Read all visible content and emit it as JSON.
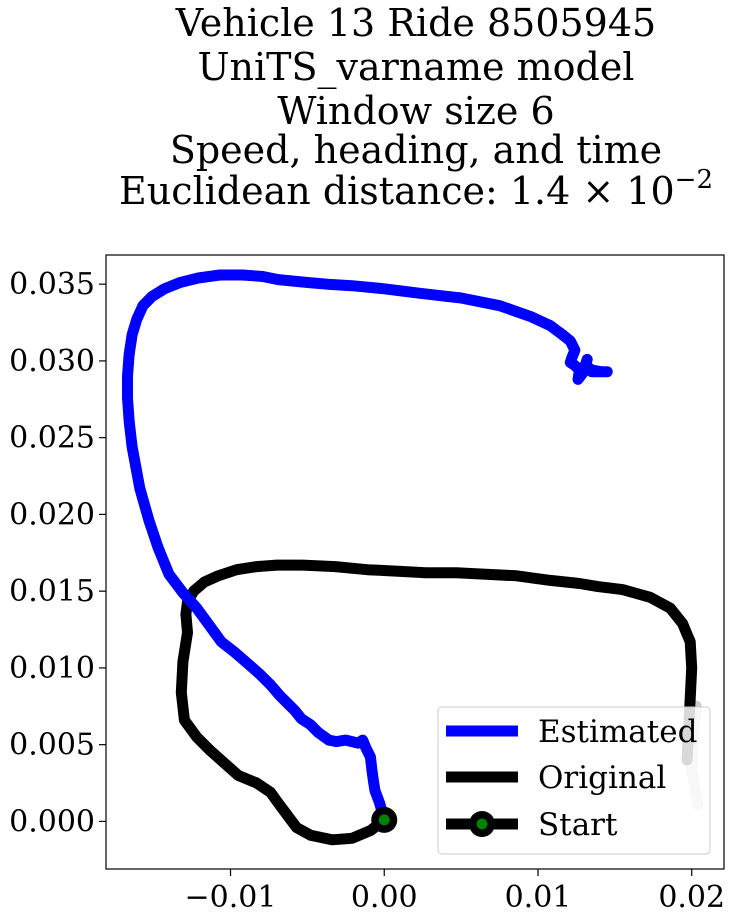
{
  "chart_data": {
    "type": "line",
    "title_lines": [
      "Vehicle 13 Ride 8505945",
      "UniTS_varname model",
      "Window size 6",
      "Speed, heading, and time"
    ],
    "title_metric_label": "Euclidean distance: ",
    "title_metric_mantissa": "1.4",
    "title_metric_times": "×",
    "title_metric_base": "10",
    "title_metric_exponent": "−2",
    "xlabel": "",
    "ylabel": "",
    "xlim": [
      -0.0181,
      0.0221
    ],
    "ylim": [
      -0.0031,
      0.0369
    ],
    "xticks": [
      -0.01,
      0.0,
      0.01,
      0.02
    ],
    "xtick_labels": [
      "−0.01",
      "0.00",
      "0.01",
      "0.02"
    ],
    "yticks": [
      0.0,
      0.005,
      0.01,
      0.015,
      0.02,
      0.025,
      0.03,
      0.035
    ],
    "ytick_labels": [
      "0.000",
      "0.005",
      "0.010",
      "0.015",
      "0.020",
      "0.025",
      "0.030",
      "0.035"
    ],
    "grid": false,
    "legend_position": "lower-right",
    "series": [
      {
        "name": "Estimated",
        "color": "#0000ff",
        "x": [
          0.0,
          -0.0003,
          -0.0006,
          -0.0007,
          -0.0008,
          -0.0009,
          -0.0012,
          -0.0014,
          -0.0017,
          -0.0021,
          -0.0025,
          -0.0031,
          -0.0036,
          -0.0043,
          -0.0048,
          -0.0054,
          -0.0058,
          -0.0063,
          -0.0068,
          -0.0074,
          -0.0081,
          -0.0089,
          -0.0097,
          -0.0106,
          -0.0114,
          -0.0122,
          -0.0131,
          -0.014,
          -0.0147,
          -0.0153,
          -0.0159,
          -0.0164,
          -0.0166,
          -0.0167,
          -0.0167,
          -0.0166,
          -0.0164,
          -0.0161,
          -0.0157,
          -0.0151,
          -0.0143,
          -0.0133,
          -0.0121,
          -0.0107,
          -0.0092,
          -0.0079,
          -0.0069,
          -0.0059,
          -0.0049,
          -0.0037,
          -0.0021,
          0.0,
          0.0024,
          0.005,
          0.0075,
          0.0095,
          0.0108,
          0.0116,
          0.0121,
          0.0124,
          0.0122,
          0.0121,
          0.0124,
          0.0127,
          0.0126,
          0.0129,
          0.0132,
          0.0131,
          0.0135,
          0.0141,
          0.0145,
          0.0135
        ],
        "y": [
          0.0001,
          0.0012,
          0.002,
          0.0026,
          0.0033,
          0.0042,
          0.0048,
          0.0053,
          0.0051,
          0.0052,
          0.0053,
          0.0052,
          0.0053,
          0.0058,
          0.0063,
          0.0067,
          0.0072,
          0.0077,
          0.0082,
          0.0089,
          0.0096,
          0.0103,
          0.011,
          0.0117,
          0.0128,
          0.0139,
          0.0149,
          0.0161,
          0.0178,
          0.0196,
          0.0217,
          0.0244,
          0.0261,
          0.0276,
          0.029,
          0.0304,
          0.0317,
          0.0327,
          0.0336,
          0.0342,
          0.0347,
          0.0351,
          0.0354,
          0.0356,
          0.0356,
          0.0355,
          0.0353,
          0.0352,
          0.0351,
          0.035,
          0.0349,
          0.0347,
          0.0344,
          0.0341,
          0.0336,
          0.0329,
          0.0323,
          0.0317,
          0.0313,
          0.0307,
          0.0302,
          0.0299,
          0.0297,
          0.0294,
          0.0288,
          0.0292,
          0.0301,
          0.0297,
          0.0294,
          0.0293,
          0.0293,
          0.0293
        ]
      },
      {
        "name": "Original",
        "color": "#000000",
        "x": [
          0.0,
          -0.0009,
          -0.0021,
          -0.0034,
          -0.0048,
          -0.0057,
          -0.0063,
          -0.0069,
          -0.0074,
          -0.0083,
          -0.0095,
          -0.0104,
          -0.0113,
          -0.0122,
          -0.013,
          -0.0132,
          -0.0131,
          -0.0128,
          -0.0129,
          -0.0128,
          -0.0124,
          -0.0117,
          -0.0108,
          -0.0096,
          -0.0083,
          -0.007,
          -0.0053,
          -0.0032,
          -0.0011,
          0.0009,
          0.0027,
          0.0047,
          0.0066,
          0.0086,
          0.0108,
          0.0127,
          0.0139,
          0.0155,
          0.0173,
          0.0186,
          0.0194,
          0.0199,
          0.02,
          0.0199,
          0.0198,
          0.0197
        ],
        "y": [
          0.0001,
          -0.0006,
          -0.0011,
          -0.0012,
          -0.0009,
          -0.0004,
          0.0004,
          0.0012,
          0.0019,
          0.0025,
          0.003,
          0.0038,
          0.0046,
          0.0055,
          0.0066,
          0.0084,
          0.0104,
          0.0123,
          0.0135,
          0.0143,
          0.015,
          0.0156,
          0.016,
          0.0164,
          0.0166,
          0.0167,
          0.0167,
          0.0166,
          0.0164,
          0.0163,
          0.0162,
          0.0162,
          0.0161,
          0.016,
          0.0157,
          0.0155,
          0.0153,
          0.0151,
          0.0146,
          0.0139,
          0.0129,
          0.0117,
          0.01,
          0.008,
          0.006,
          0.004
        ]
      },
      {
        "name": "Original (gray tail)",
        "color": "#cccccc",
        "x": [
          0.0203,
          0.0201,
          0.02,
          0.0204
        ],
        "y": [
          0.0075,
          0.0057,
          0.0034,
          0.0011
        ]
      }
    ],
    "start_point": {
      "name": "Start",
      "x": 0.0,
      "y": 0.0001,
      "ring_color": "#000000",
      "dot_color": "#008000"
    },
    "legend_entries": [
      "Estimated",
      "Original",
      "Start"
    ]
  }
}
